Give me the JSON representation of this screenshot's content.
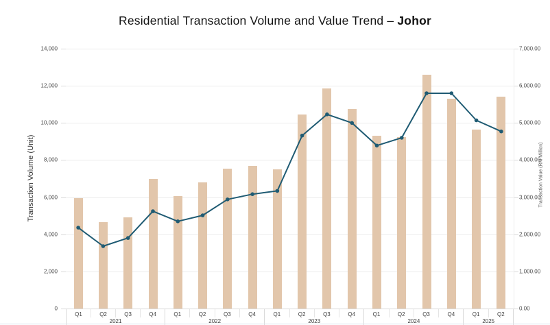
{
  "title": {
    "prefix": "Residential Transaction Volume and Value Trend – ",
    "region": "Johor"
  },
  "left_axis": {
    "title": "Transaction Volume (Unit)",
    "tick_labels": [
      "0",
      "2,000",
      "4,000",
      "6,000",
      "8,000",
      "10,000",
      "12,000",
      "14,000"
    ],
    "min": 0,
    "max": 14000,
    "step": 2000
  },
  "right_axis": {
    "title": "Transaction Value (RM Million)",
    "tick_labels": [
      "0.00",
      "1,000.00",
      "2,000.00",
      "3,000.00",
      "4,000.00",
      "5,000.00",
      "6,000.00",
      "7,000.00"
    ],
    "min": 0,
    "max": 7000,
    "step": 1000
  },
  "x_axis": {
    "groups": [
      {
        "year": "2021",
        "quarters": [
          "Q1",
          "Q2",
          "Q3",
          "Q4"
        ]
      },
      {
        "year": "2022",
        "quarters": [
          "Q1",
          "Q2",
          "Q3",
          "Q4"
        ]
      },
      {
        "year": "2023",
        "quarters": [
          "Q1",
          "Q2",
          "Q3",
          "Q4"
        ]
      },
      {
        "year": "2024",
        "quarters": [
          "Q1",
          "Q2",
          "Q3",
          "Q4"
        ]
      },
      {
        "year": "2025",
        "quarters": [
          "Q1",
          "Q2"
        ]
      }
    ]
  },
  "colors": {
    "bar": "#e2c6ab",
    "line": "#1f5b73",
    "grid": "#ececec",
    "axis_border": "#d9d9d9",
    "cell_border": "#e5e5e5",
    "bottom_edge": "#dce4ee"
  },
  "chart_data": {
    "type": "combo",
    "title": "Residential Transaction Volume and Value Trend – Johor",
    "categories": [
      "2021 Q1",
      "2021 Q2",
      "2021 Q3",
      "2021 Q4",
      "2022 Q1",
      "2022 Q2",
      "2022 Q3",
      "2022 Q4",
      "2023 Q1",
      "2023 Q2",
      "2023 Q3",
      "2023 Q4",
      "2024 Q1",
      "2024 Q2",
      "2024 Q3",
      "2024 Q4",
      "2025 Q1",
      "2025 Q2"
    ],
    "series": [
      {
        "name": "Transaction Volume (Unit)",
        "type": "bar",
        "yaxis": "left",
        "values": [
          5950,
          4650,
          4900,
          7000,
          6050,
          6800,
          7550,
          7700,
          7500,
          10450,
          11850,
          10750,
          9300,
          9250,
          12600,
          11300,
          9650,
          11400
        ]
      },
      {
        "name": "Transaction Value (RM Million)",
        "type": "line",
        "yaxis": "right",
        "values": [
          2180,
          1680,
          1900,
          2620,
          2350,
          2510,
          2940,
          3080,
          3170,
          4660,
          5230,
          5000,
          4390,
          4600,
          5800,
          5800,
          5070,
          4770
        ]
      }
    ],
    "xlabel": "",
    "ylabel_left": "Transaction Volume (Unit)",
    "ylabel_right": "Transaction Value (RM Million)",
    "ylim_left": [
      0,
      14000
    ],
    "ylim_right": [
      0,
      7000
    ],
    "grid": true,
    "legend": "none"
  }
}
